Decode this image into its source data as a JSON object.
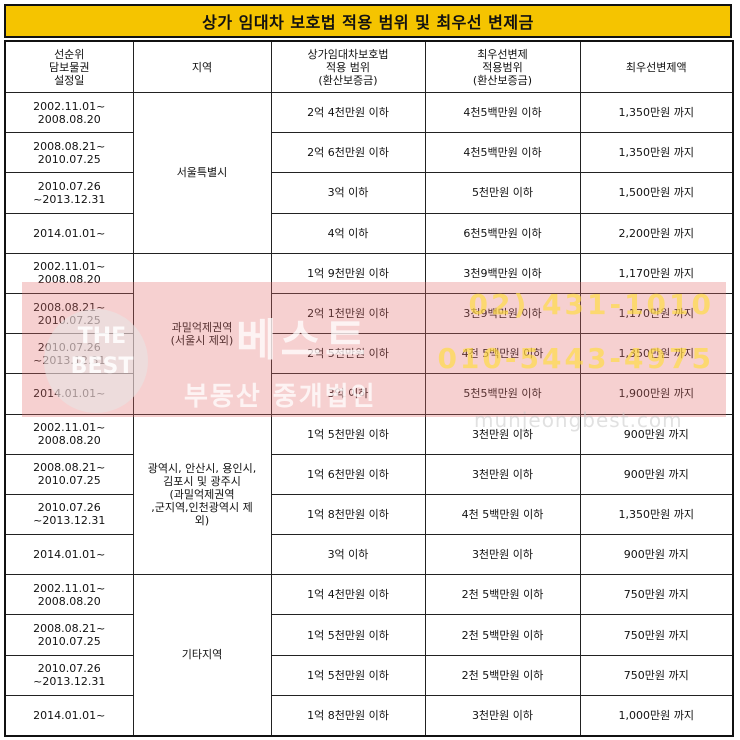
{
  "title": "상가 임대차 보호법 적용 범위 및 최우선 변제금",
  "headers": {
    "date": "선순위\n담보물권\n설정일",
    "region": "지역",
    "scope": "상가임대차보호법\n적용 범위\n(환산보증금)",
    "deposit": "최우선변제\n적용범위\n(환산보증금)",
    "amount": "최우선변제액"
  },
  "groups": [
    {
      "region": "서울특별시",
      "rows": [
        {
          "date": "2002.11.01~\n2008.08.20",
          "scope": "2억 4천만원 이하",
          "deposit": "4천5백만원 이하",
          "amount": "1,350만원 까지"
        },
        {
          "date": "2008.08.21~\n2010.07.25",
          "scope": "2억 6천만원 이하",
          "deposit": "4천5백만원 이하",
          "amount": "1,350만원 까지"
        },
        {
          "date": "2010.07.26\n~2013.12.31",
          "scope": "3억 이하",
          "deposit": "5천만원 이하",
          "amount": "1,500만원 까지"
        },
        {
          "date": "2014.01.01~",
          "scope": "4억 이하",
          "deposit": "6천5백만원 이하",
          "amount": "2,200만원 까지"
        }
      ]
    },
    {
      "region": "과밀억제권역\n(서울시 제외)",
      "rows": [
        {
          "date": "2002.11.01~\n2008.08.20",
          "scope": "1억 9천만원 이하",
          "deposit": "3천9백만원 이하",
          "amount": "1,170만원 까지"
        },
        {
          "date": "2008.08.21~\n2010.07.25",
          "scope": "2억 1천만원 이하",
          "deposit": "3천9백만원 이하",
          "amount": "1,170만원 까지"
        },
        {
          "date": "2010.07.26\n~2013.12.31",
          "scope": "2억 5천만원 이하",
          "deposit": "4천 5백만원 이하",
          "amount": "1,350만원 까지"
        },
        {
          "date": "2014.01.01~",
          "scope": "3억 이하",
          "deposit": "5천5백만원 이하",
          "amount": "1,900만원 까지"
        }
      ]
    },
    {
      "region": "광역시, 안산시, 용인시,\n김포시 및 광주시\n(과밀억제권역\n,군지역,인천광역시 제\n외)",
      "rows": [
        {
          "date": "2002.11.01~\n2008.08.20",
          "scope": "1억 5천만원 이하",
          "deposit": "3천만원 이하",
          "amount": "900만원 까지"
        },
        {
          "date": "2008.08.21~\n2010.07.25",
          "scope": "1억 6천만원 이하",
          "deposit": "3천만원 이하",
          "amount": "900만원 까지"
        },
        {
          "date": "2010.07.26\n~2013.12.31",
          "scope": "1억 8천만원 이하",
          "deposit": "4천 5백만원 이하",
          "amount": "1,350만원 까지"
        },
        {
          "date": "2014.01.01~",
          "scope": "3억 이하",
          "deposit": "3천만원 이하",
          "amount": "900만원 까지"
        }
      ]
    },
    {
      "region": "기타지역",
      "rows": [
        {
          "date": "2002.11.01~\n2008.08.20",
          "scope": "1억 4천만원 이하",
          "deposit": "2천 5백만원 이하",
          "amount": "750만원 까지"
        },
        {
          "date": "2008.08.21~\n2010.07.25",
          "scope": "1억 5천만원 이하",
          "deposit": "2천 5백만원 이하",
          "amount": "750만원 까지"
        },
        {
          "date": "2010.07.26\n~2013.12.31",
          "scope": "1억 5천만원 이하",
          "deposit": "2천 5백만원 이하",
          "amount": "750만원 까지"
        },
        {
          "date": "2014.01.01~",
          "scope": "1억 8천만원 이하",
          "deposit": "3천만원 이하",
          "amount": "1,000만원 까지"
        }
      ]
    }
  ],
  "watermark": {
    "logo_line1": "THE",
    "logo_line2": "BEST",
    "name": "베스트",
    "subtitle": "부동산 중개법인",
    "phone1": "02) 431-1010",
    "phone2": "010-5443-4975",
    "url": "munjeongbest.com"
  }
}
